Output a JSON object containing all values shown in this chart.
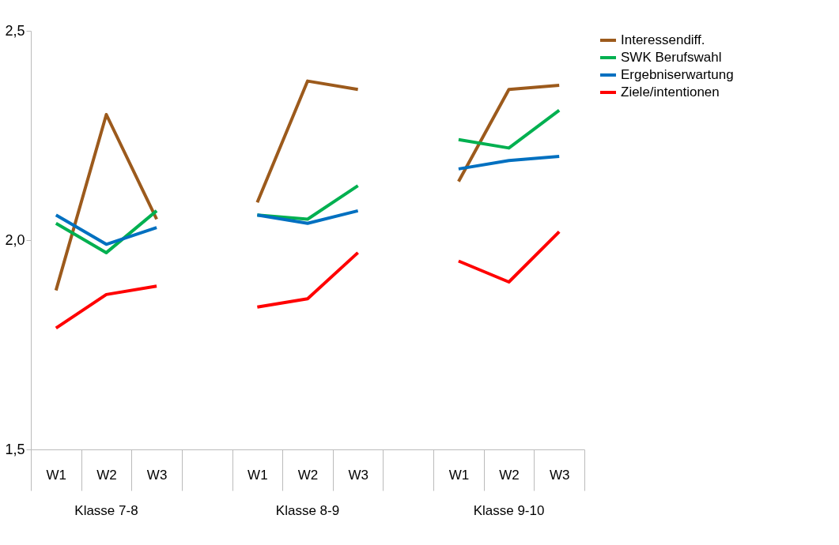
{
  "chart_data": {
    "type": "line",
    "categories": [
      "W1",
      "W2",
      "W3",
      null,
      "W1",
      "W2",
      "W3",
      null,
      "W1",
      "W2",
      "W3"
    ],
    "series": [
      {
        "name": "Interessendiff.",
        "color": "#9c5a1c",
        "values": [
          1.88,
          2.3,
          2.05,
          null,
          2.09,
          2.38,
          2.36,
          null,
          2.14,
          2.36,
          2.37
        ]
      },
      {
        "name": "SWK Berufswahl",
        "color": "#00b050",
        "values": [
          2.04,
          1.97,
          2.07,
          null,
          2.06,
          2.05,
          2.13,
          null,
          2.24,
          2.22,
          2.31
        ]
      },
      {
        "name": "Ergebniserwartung",
        "color": "#0070c0",
        "values": [
          2.06,
          1.99,
          2.03,
          null,
          2.06,
          2.04,
          2.07,
          null,
          2.17,
          2.19,
          2.2
        ]
      },
      {
        "name": "Ziele/intentionen",
        "color": "#ff0000",
        "values": [
          1.79,
          1.87,
          1.89,
          null,
          1.84,
          1.86,
          1.97,
          null,
          1.95,
          1.9,
          2.02
        ]
      }
    ],
    "annotations": [
      "Klasse 7-8",
      "Klasse 8-9",
      "Klasse 9-10"
    ],
    "ylim": [
      1.5,
      2.5
    ],
    "yticks": [
      {
        "value": 1.5,
        "label": "1,5"
      },
      {
        "value": 2.0,
        "label": "2,0"
      },
      {
        "value": 2.5,
        "label": "2,5"
      }
    ],
    "grid": false,
    "legend": "right",
    "marker": "none",
    "line_style": "solid"
  }
}
